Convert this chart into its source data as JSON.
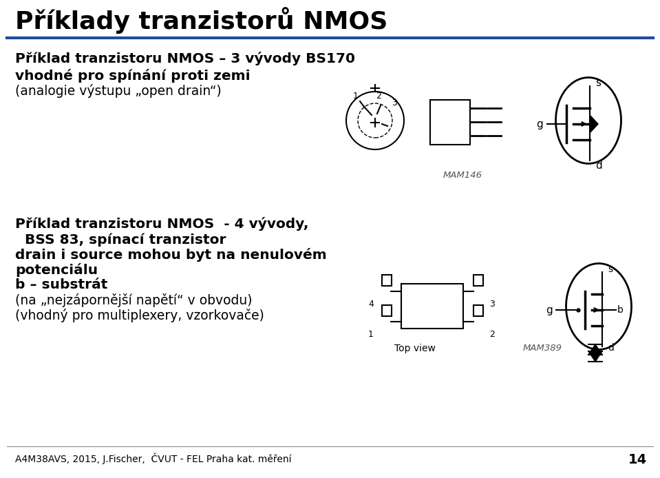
{
  "title": "Příklady tranzistorů NMOS",
  "title_fontsize": 26,
  "title_color": "#000000",
  "blue_line_color": "#1F4E9B",
  "background_color": "#ffffff",
  "section1_lines": [
    "Příklad tranzistoru NMOS – 3 vývody BS170",
    "vhodné pro spínání proti zemi",
    "(analogie výstupu „open drain“)"
  ],
  "section1_bold": [
    true,
    true,
    false
  ],
  "section2_lines": [
    "Příklad tranzistoru NMOS  - 4 vývody,",
    "  BSS 83, spínací tranzistor",
    "drain i source mohou byt na nenulovém",
    "potenciálu",
    "b – substrát",
    "(na „nejzápornější napětí“ v obvodu)",
    "(vhodný pro multiplexery, vzorkovače)"
  ],
  "section2_bold": [
    true,
    true,
    true,
    true,
    true,
    false,
    false
  ],
  "footer": "A4M38AVS, 2015, J.Fischer,  ČVUT - FEL Praha kat. měření",
  "page_number": "14",
  "mam146_label": "MAM146",
  "mam389_label": "MAM389",
  "topview_label": "Top view"
}
